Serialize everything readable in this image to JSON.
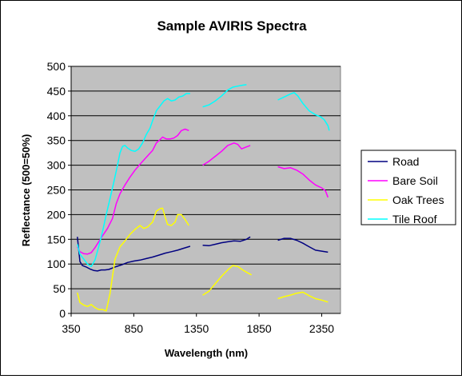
{
  "chart_data": {
    "type": "line",
    "title": "Sample AVIRIS Spectra",
    "xlabel": "Wavelength (nm)",
    "ylabel": "Reflectance (500=50%)",
    "xlim": [
      350,
      2500
    ],
    "ylim": [
      0,
      500
    ],
    "xticks": [
      350,
      850,
      1350,
      1850,
      2350
    ],
    "yticks": [
      0,
      50,
      100,
      150,
      200,
      250,
      300,
      350,
      400,
      450,
      500
    ],
    "grid": "horizontal",
    "plot_background": "#c0c0c0",
    "legend_position": "right",
    "series": [
      {
        "name": "Road",
        "color": "#000080",
        "segments": [
          [
            [
              400,
              155
            ],
            [
              420,
              105
            ],
            [
              440,
              97
            ],
            [
              470,
              94
            ],
            [
              500,
              90
            ],
            [
              530,
              87
            ],
            [
              560,
              86
            ],
            [
              590,
              88
            ],
            [
              620,
              88
            ],
            [
              650,
              89
            ],
            [
              700,
              94
            ],
            [
              750,
              98
            ],
            [
              800,
              103
            ],
            [
              850,
              106
            ],
            [
              900,
              108
            ],
            [
              950,
              111
            ],
            [
              1000,
              114
            ],
            [
              1050,
              118
            ],
            [
              1100,
              122
            ],
            [
              1150,
              125
            ],
            [
              1200,
              128
            ],
            [
              1250,
              132
            ],
            [
              1300,
              136
            ]
          ],
          [
            [
              1400,
              138
            ],
            [
              1450,
              137
            ],
            [
              1500,
              140
            ],
            [
              1550,
              143
            ],
            [
              1600,
              145
            ],
            [
              1650,
              147
            ],
            [
              1700,
              146
            ],
            [
              1750,
              150
            ],
            [
              1780,
              155
            ]
          ],
          [
            [
              2000,
              148
            ],
            [
              2050,
              152
            ],
            [
              2100,
              152
            ],
            [
              2150,
              148
            ],
            [
              2200,
              142
            ],
            [
              2250,
              135
            ],
            [
              2300,
              128
            ],
            [
              2350,
              126
            ],
            [
              2400,
              124
            ]
          ]
        ]
      },
      {
        "name": "Bare Soil",
        "color": "#ff00ff",
        "segments": [
          [
            [
              400,
              135
            ],
            [
              420,
              125
            ],
            [
              450,
              121
            ],
            [
              480,
              120
            ],
            [
              510,
              123
            ],
            [
              540,
              133
            ],
            [
              570,
              145
            ],
            [
              600,
              157
            ],
            [
              640,
              172
            ],
            [
              680,
              192
            ],
            [
              710,
              222
            ],
            [
              740,
              242
            ],
            [
              780,
              260
            ],
            [
              820,
              276
            ],
            [
              860,
              290
            ],
            [
              900,
              302
            ],
            [
              950,
              316
            ],
            [
              1000,
              330
            ],
            [
              1030,
              345
            ],
            [
              1060,
              352
            ],
            [
              1080,
              357
            ],
            [
              1110,
              353
            ],
            [
              1140,
              353
            ],
            [
              1170,
              355
            ],
            [
              1200,
              360
            ],
            [
              1230,
              370
            ],
            [
              1260,
              373
            ],
            [
              1290,
              370
            ]
          ],
          [
            [
              1400,
              300
            ],
            [
              1450,
              308
            ],
            [
              1500,
              318
            ],
            [
              1550,
              328
            ],
            [
              1600,
              340
            ],
            [
              1650,
              345
            ],
            [
              1680,
              342
            ],
            [
              1710,
              333
            ],
            [
              1750,
              337
            ],
            [
              1780,
              340
            ]
          ],
          [
            [
              2000,
              297
            ],
            [
              2050,
              293
            ],
            [
              2100,
              295
            ],
            [
              2150,
              290
            ],
            [
              2200,
              282
            ],
            [
              2250,
              270
            ],
            [
              2300,
              260
            ],
            [
              2350,
              254
            ],
            [
              2380,
              248
            ],
            [
              2400,
              235
            ]
          ]
        ]
      },
      {
        "name": "Oak Trees",
        "color": "#ffff00",
        "segments": [
          [
            [
              400,
              42
            ],
            [
              420,
              22
            ],
            [
              450,
              17
            ],
            [
              480,
              14
            ],
            [
              510,
              18
            ],
            [
              540,
              12
            ],
            [
              570,
              8
            ],
            [
              600,
              8
            ],
            [
              630,
              5
            ],
            [
              660,
              40
            ],
            [
              700,
              110
            ],
            [
              740,
              135
            ],
            [
              780,
              147
            ],
            [
              820,
              160
            ],
            [
              860,
              170
            ],
            [
              900,
              178
            ],
            [
              930,
              172
            ],
            [
              960,
              175
            ],
            [
              1000,
              185
            ],
            [
              1030,
              207
            ],
            [
              1060,
              212
            ],
            [
              1080,
              213
            ],
            [
              1100,
              195
            ],
            [
              1120,
              180
            ],
            [
              1150,
              178
            ],
            [
              1180,
              185
            ],
            [
              1200,
              200
            ],
            [
              1230,
              200
            ],
            [
              1260,
              190
            ],
            [
              1290,
              178
            ]
          ],
          [
            [
              1400,
              37
            ],
            [
              1450,
              45
            ],
            [
              1500,
              60
            ],
            [
              1550,
              75
            ],
            [
              1600,
              88
            ],
            [
              1640,
              97
            ],
            [
              1680,
              95
            ],
            [
              1720,
              88
            ],
            [
              1760,
              82
            ],
            [
              1790,
              78
            ]
          ],
          [
            [
              2000,
              30
            ],
            [
              2050,
              34
            ],
            [
              2100,
              37
            ],
            [
              2150,
              41
            ],
            [
              2200,
              43
            ],
            [
              2250,
              36
            ],
            [
              2300,
              30
            ],
            [
              2350,
              27
            ],
            [
              2400,
              23
            ]
          ]
        ]
      },
      {
        "name": "Tile Roof",
        "color": "#00ffff",
        "segments": [
          [
            [
              400,
              140
            ],
            [
              420,
              120
            ],
            [
              450,
              110
            ],
            [
              480,
              100
            ],
            [
              510,
              95
            ],
            [
              540,
              108
            ],
            [
              570,
              135
            ],
            [
              600,
              165
            ],
            [
              630,
              200
            ],
            [
              660,
              232
            ],
            [
              690,
              265
            ],
            [
              720,
              300
            ],
            [
              740,
              325
            ],
            [
              760,
              338
            ],
            [
              780,
              340
            ],
            [
              800,
              335
            ],
            [
              830,
              330
            ],
            [
              860,
              328
            ],
            [
              890,
              333
            ],
            [
              920,
              345
            ],
            [
              950,
              362
            ],
            [
              980,
              375
            ],
            [
              1000,
              390
            ],
            [
              1030,
              410
            ],
            [
              1060,
              420
            ],
            [
              1090,
              430
            ],
            [
              1120,
              435
            ],
            [
              1150,
              430
            ],
            [
              1180,
              432
            ],
            [
              1210,
              438
            ],
            [
              1240,
              440
            ],
            [
              1270,
              445
            ],
            [
              1300,
              445
            ]
          ],
          [
            [
              1400,
              418
            ],
            [
              1450,
              422
            ],
            [
              1500,
              430
            ],
            [
              1550,
              440
            ],
            [
              1600,
              452
            ],
            [
              1640,
              458
            ],
            [
              1680,
              460
            ],
            [
              1720,
              462
            ],
            [
              1750,
              463
            ]
          ],
          [
            [
              2000,
              432
            ],
            [
              2050,
              438
            ],
            [
              2100,
              444
            ],
            [
              2130,
              447
            ],
            [
              2160,
              440
            ],
            [
              2200,
              425
            ],
            [
              2250,
              410
            ],
            [
              2300,
              402
            ],
            [
              2340,
              398
            ],
            [
              2370,
              392
            ],
            [
              2400,
              380
            ],
            [
              2410,
              370
            ]
          ]
        ]
      }
    ]
  }
}
